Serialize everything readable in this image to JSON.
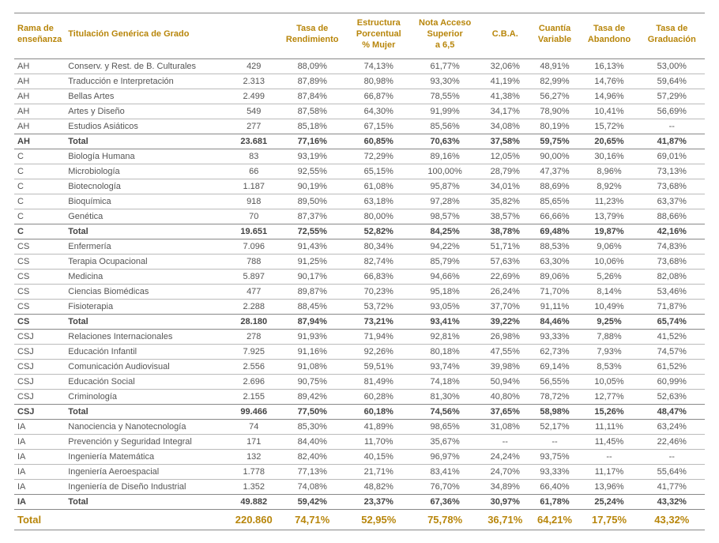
{
  "colors": {
    "accent": "#b8860b",
    "row_text": "#555555",
    "border": "#888888",
    "border_light": "#bbbbbb",
    "background": "#ffffff"
  },
  "columns": [
    {
      "key": "rama",
      "label": "Rama de\nenseñanza",
      "align": "left"
    },
    {
      "key": "titulo",
      "label": "Titulación Genérica de Grado",
      "align": "left"
    },
    {
      "key": "n",
      "label": "",
      "align": "center"
    },
    {
      "key": "rend",
      "label": "Tasa de\nRendimiento",
      "align": "center"
    },
    {
      "key": "mujer",
      "label": "Estructura\nPorcentual\n% Mujer",
      "align": "center"
    },
    {
      "key": "nota",
      "label": "Nota Acceso\nSuperior\na 6,5",
      "align": "center"
    },
    {
      "key": "cba",
      "label": "C.B.A.",
      "align": "center"
    },
    {
      "key": "cuantia",
      "label": "Cuantía\nVariable",
      "align": "center"
    },
    {
      "key": "aband",
      "label": "Tasa de\nAbandono",
      "align": "center"
    },
    {
      "key": "grad",
      "label": "Tasa de\nGraduación",
      "align": "center"
    }
  ],
  "rows": [
    {
      "type": "data",
      "sep": true,
      "cells": [
        "AH",
        "Conserv. y Rest. de B. Culturales",
        "429",
        "88,09%",
        "74,13%",
        "61,77%",
        "32,06%",
        "48,91%",
        "16,13%",
        "53,00%"
      ]
    },
    {
      "type": "data",
      "sep": true,
      "cells": [
        "AH",
        "Traducción e Interpretación",
        "2.313",
        "87,89%",
        "80,98%",
        "93,30%",
        "41,19%",
        "82,99%",
        "14,76%",
        "59,64%"
      ]
    },
    {
      "type": "data",
      "sep": true,
      "cells": [
        "AH",
        "Bellas Artes",
        "2.499",
        "87,84%",
        "66,87%",
        "78,55%",
        "41,38%",
        "56,27%",
        "14,96%",
        "57,29%"
      ]
    },
    {
      "type": "data",
      "sep": true,
      "cells": [
        "AH",
        "Artes y Diseño",
        "549",
        "87,58%",
        "64,30%",
        "91,99%",
        "34,17%",
        "78,90%",
        "10,41%",
        "56,69%"
      ]
    },
    {
      "type": "data",
      "cells": [
        "AH",
        "Estudios Asiáticos",
        "277",
        "85,18%",
        "67,15%",
        "85,56%",
        "34,08%",
        "80,19%",
        "15,72%",
        "--"
      ]
    },
    {
      "type": "total",
      "cells": [
        "AH",
        "Total",
        "23.681",
        "77,16%",
        "60,85%",
        "70,63%",
        "37,58%",
        "59,75%",
        "20,65%",
        "41,87%"
      ]
    },
    {
      "type": "data",
      "sep": true,
      "cells": [
        "C",
        "Biología Humana",
        "83",
        "93,19%",
        "72,29%",
        "89,16%",
        "12,05%",
        "90,00%",
        "30,16%",
        "69,01%"
      ]
    },
    {
      "type": "data",
      "sep": true,
      "cells": [
        "C",
        "Microbiología",
        "66",
        "92,55%",
        "65,15%",
        "100,00%",
        "28,79%",
        "47,37%",
        "8,96%",
        "73,13%"
      ]
    },
    {
      "type": "data",
      "sep": true,
      "cells": [
        "C",
        "Biotecnología",
        "1.187",
        "90,19%",
        "61,08%",
        "95,87%",
        "34,01%",
        "88,69%",
        "8,92%",
        "73,68%"
      ]
    },
    {
      "type": "data",
      "sep": true,
      "cells": [
        "C",
        "Bioquímica",
        "918",
        "89,50%",
        "63,18%",
        "97,28%",
        "35,82%",
        "85,65%",
        "11,23%",
        "63,37%"
      ]
    },
    {
      "type": "data",
      "cells": [
        "C",
        "Genética",
        "70",
        "87,37%",
        "80,00%",
        "98,57%",
        "38,57%",
        "66,66%",
        "13,79%",
        "88,66%"
      ]
    },
    {
      "type": "total",
      "cells": [
        "C",
        "Total",
        "19.651",
        "72,55%",
        "52,82%",
        "84,25%",
        "38,78%",
        "69,48%",
        "19,87%",
        "42,16%"
      ]
    },
    {
      "type": "data",
      "sep": true,
      "cells": [
        "CS",
        "Enfermería",
        "7.096",
        "91,43%",
        "80,34%",
        "94,22%",
        "51,71%",
        "88,53%",
        "9,06%",
        "74,83%"
      ]
    },
    {
      "type": "data",
      "sep": true,
      "cells": [
        "CS",
        "Terapia Ocupacional",
        "788",
        "91,25%",
        "82,74%",
        "85,79%",
        "57,63%",
        "63,30%",
        "10,06%",
        "73,68%"
      ]
    },
    {
      "type": "data",
      "sep": true,
      "cells": [
        "CS",
        "Medicina",
        "5.897",
        "90,17%",
        "66,83%",
        "94,66%",
        "22,69%",
        "89,06%",
        "5,26%",
        "82,08%"
      ]
    },
    {
      "type": "data",
      "sep": true,
      "cells": [
        "CS",
        "Ciencias Biomédicas",
        "477",
        "89,87%",
        "70,23%",
        "95,18%",
        "26,24%",
        "71,70%",
        "8,14%",
        "53,46%"
      ]
    },
    {
      "type": "data",
      "cells": [
        "CS",
        "Fisioterapia",
        "2.288",
        "88,45%",
        "53,72%",
        "93,05%",
        "37,70%",
        "91,11%",
        "10,49%",
        "71,87%"
      ]
    },
    {
      "type": "total",
      "cells": [
        "CS",
        "Total",
        "28.180",
        "87,94%",
        "73,21%",
        "93,41%",
        "39,22%",
        "84,46%",
        "9,25%",
        "65,74%"
      ]
    },
    {
      "type": "data",
      "sep": true,
      "cells": [
        "CSJ",
        "Relaciones Internacionales",
        "278",
        "91,93%",
        "71,94%",
        "92,81%",
        "26,98%",
        "93,33%",
        "7,88%",
        "41,52%"
      ]
    },
    {
      "type": "data",
      "sep": true,
      "cells": [
        "CSJ",
        "Educación Infantil",
        "7.925",
        "91,16%",
        "92,26%",
        "80,18%",
        "47,55%",
        "62,73%",
        "7,93%",
        "74,57%"
      ]
    },
    {
      "type": "data",
      "sep": true,
      "cells": [
        "CSJ",
        "Comunicación Audiovisual",
        "2.556",
        "91,08%",
        "59,51%",
        "93,74%",
        "39,98%",
        "69,14%",
        "8,53%",
        "61,52%"
      ]
    },
    {
      "type": "data",
      "sep": true,
      "cells": [
        "CSJ",
        "Educación Social",
        "2.696",
        "90,75%",
        "81,49%",
        "74,18%",
        "50,94%",
        "56,55%",
        "10,05%",
        "60,99%"
      ]
    },
    {
      "type": "data",
      "cells": [
        "CSJ",
        "Criminología",
        "2.155",
        "89,42%",
        "60,28%",
        "81,30%",
        "40,80%",
        "78,72%",
        "12,77%",
        "52,63%"
      ]
    },
    {
      "type": "total",
      "cells": [
        "CSJ",
        "Total",
        "99.466",
        "77,50%",
        "60,18%",
        "74,56%",
        "37,65%",
        "58,98%",
        "15,26%",
        "48,47%"
      ]
    },
    {
      "type": "data",
      "sep": true,
      "cells": [
        "IA",
        "Nanociencia y Nanotecnología",
        "74",
        "85,30%",
        "41,89%",
        "98,65%",
        "31,08%",
        "52,17%",
        "11,11%",
        "63,24%"
      ]
    },
    {
      "type": "data",
      "sep": true,
      "cells": [
        "IA",
        "Prevención y Seguridad Integral",
        "171",
        "84,40%",
        "11,70%",
        "35,67%",
        "--",
        "--",
        "11,45%",
        "22,46%"
      ]
    },
    {
      "type": "data",
      "sep": true,
      "cells": [
        "IA",
        "Ingeniería Matemática",
        "132",
        "82,40%",
        "40,15%",
        "96,97%",
        "24,24%",
        "93,75%",
        "--",
        "--"
      ]
    },
    {
      "type": "data",
      "sep": true,
      "cells": [
        "IA",
        "Ingeniería Aeroespacial",
        "1.778",
        "77,13%",
        "21,71%",
        "83,41%",
        "24,70%",
        "93,33%",
        "11,17%",
        "55,64%"
      ]
    },
    {
      "type": "data",
      "cells": [
        "IA",
        "Ingeniería de Diseño Industrial",
        "1.352",
        "74,08%",
        "48,82%",
        "76,70%",
        "34,89%",
        "66,40%",
        "13,96%",
        "41,77%"
      ]
    },
    {
      "type": "total",
      "cells": [
        "IA",
        "Total",
        "49.882",
        "59,42%",
        "23,37%",
        "67,36%",
        "30,97%",
        "61,78%",
        "25,24%",
        "43,32%"
      ]
    },
    {
      "type": "grand",
      "cells": [
        "Total",
        "",
        "220.860",
        "74,71%",
        "52,95%",
        "75,78%",
        "36,71%",
        "64,21%",
        "17,75%",
        "43,32%"
      ]
    }
  ]
}
